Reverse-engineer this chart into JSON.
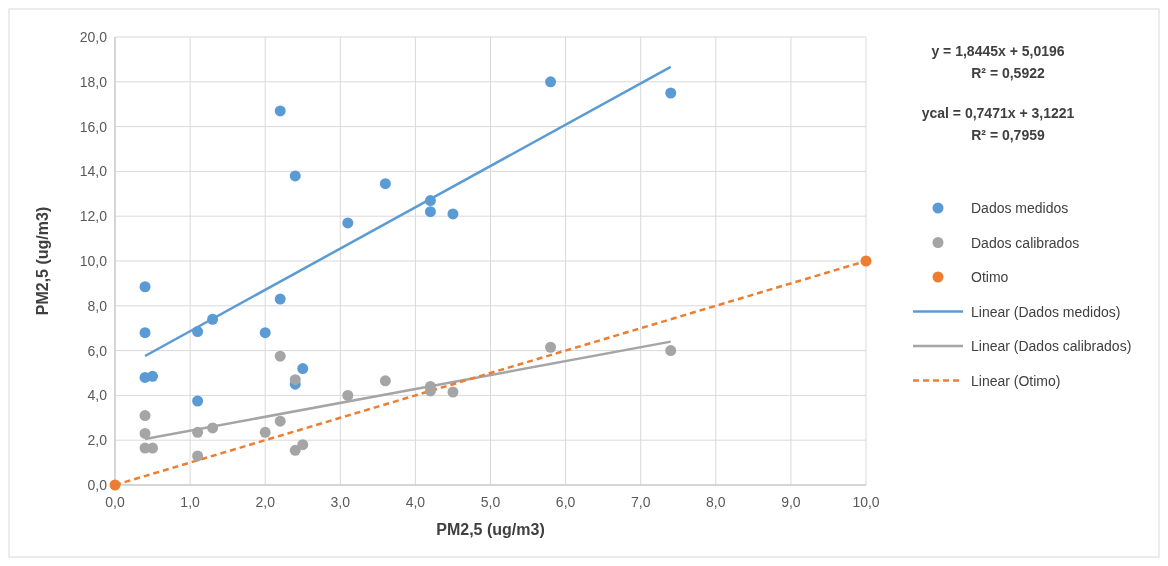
{
  "chart_data": {
    "type": "scatter",
    "xlabel": "PM2,5 (ug/m3)",
    "ylabel": "PM2,5 (ug/m3)",
    "xlim": [
      0,
      10
    ],
    "ylim": [
      0,
      20
    ],
    "xticks": [
      {
        "value": 0,
        "label": "0,0"
      },
      {
        "value": 1,
        "label": "1,0"
      },
      {
        "value": 2,
        "label": "2,0"
      },
      {
        "value": 3,
        "label": "3,0"
      },
      {
        "value": 4,
        "label": "4,0"
      },
      {
        "value": 5,
        "label": "5,0"
      },
      {
        "value": 6,
        "label": "6,0"
      },
      {
        "value": 7,
        "label": "7,0"
      },
      {
        "value": 8,
        "label": "8,0"
      },
      {
        "value": 9,
        "label": "9,0"
      },
      {
        "value": 10,
        "label": "10,0"
      }
    ],
    "yticks": [
      {
        "value": 0,
        "label": "0,0"
      },
      {
        "value": 2,
        "label": "2,0"
      },
      {
        "value": 4,
        "label": "4,0"
      },
      {
        "value": 6,
        "label": "6,0"
      },
      {
        "value": 8,
        "label": "8,0"
      },
      {
        "value": 10,
        "label": "10,0"
      },
      {
        "value": 12,
        "label": "12,0"
      },
      {
        "value": 14,
        "label": "14,0"
      },
      {
        "value": 16,
        "label": "16,0"
      },
      {
        "value": 18,
        "label": "18,0"
      },
      {
        "value": 20,
        "label": "20,0"
      }
    ],
    "grid": true,
    "legend": "right",
    "marker": "circle",
    "annotations": [
      "y = 1,8445x + 5,0196\nR² = 0,5922",
      "ycal = 0,7471x + 3,1221\nR² = 0,7959"
    ],
    "series": [
      {
        "name": "Dados medidos",
        "color": "#5b9bd5",
        "x": [
          0.4,
          0.4,
          0.4,
          0.5,
          1.1,
          1.1,
          1.3,
          2.0,
          2.2,
          2.2,
          2.4,
          2.4,
          2.5,
          3.1,
          3.6,
          4.2,
          4.2,
          4.5,
          5.8,
          7.4
        ],
        "values": [
          8.85,
          6.8,
          4.8,
          4.85,
          6.85,
          3.75,
          7.4,
          6.8,
          16.7,
          8.3,
          13.8,
          4.5,
          5.2,
          11.7,
          13.45,
          12.7,
          12.2,
          12.1,
          18.0,
          17.5
        ]
      },
      {
        "name": "Dados calibrados",
        "color": "#a5a5a5",
        "x": [
          0.4,
          0.4,
          0.4,
          0.5,
          1.1,
          1.1,
          1.3,
          2.0,
          2.2,
          2.2,
          2.4,
          2.4,
          2.5,
          3.1,
          3.6,
          4.2,
          4.2,
          4.5,
          5.8,
          7.4
        ],
        "values": [
          3.1,
          2.3,
          1.65,
          1.65,
          2.35,
          1.3,
          2.55,
          2.35,
          5.75,
          2.85,
          4.7,
          1.55,
          1.8,
          4.0,
          4.65,
          4.4,
          4.2,
          4.15,
          6.15,
          6.0
        ]
      },
      {
        "name": "Otimo",
        "color": "#ed7d31",
        "x": [
          0,
          10
        ],
        "values": [
          0,
          10
        ]
      },
      {
        "name": "Linear (Dados medidos)",
        "type": "line",
        "color": "#5b9bd5",
        "line_style": "solid",
        "marker": "none",
        "x": [
          0.4,
          7.4
        ],
        "values": [
          5.76,
          18.67
        ]
      },
      {
        "name": "Linear (Dados calibrados)",
        "type": "line",
        "color": "#a5a5a5",
        "line_style": "solid",
        "marker": "none",
        "x": [
          0.4,
          7.4
        ],
        "values": [
          2.05,
          6.4
        ]
      },
      {
        "name": "Linear (Otimo)",
        "type": "line",
        "color": "#ed7d31",
        "line_style": "dashed",
        "marker": "none",
        "x": [
          0,
          10
        ],
        "values": [
          0,
          10
        ]
      }
    ]
  }
}
